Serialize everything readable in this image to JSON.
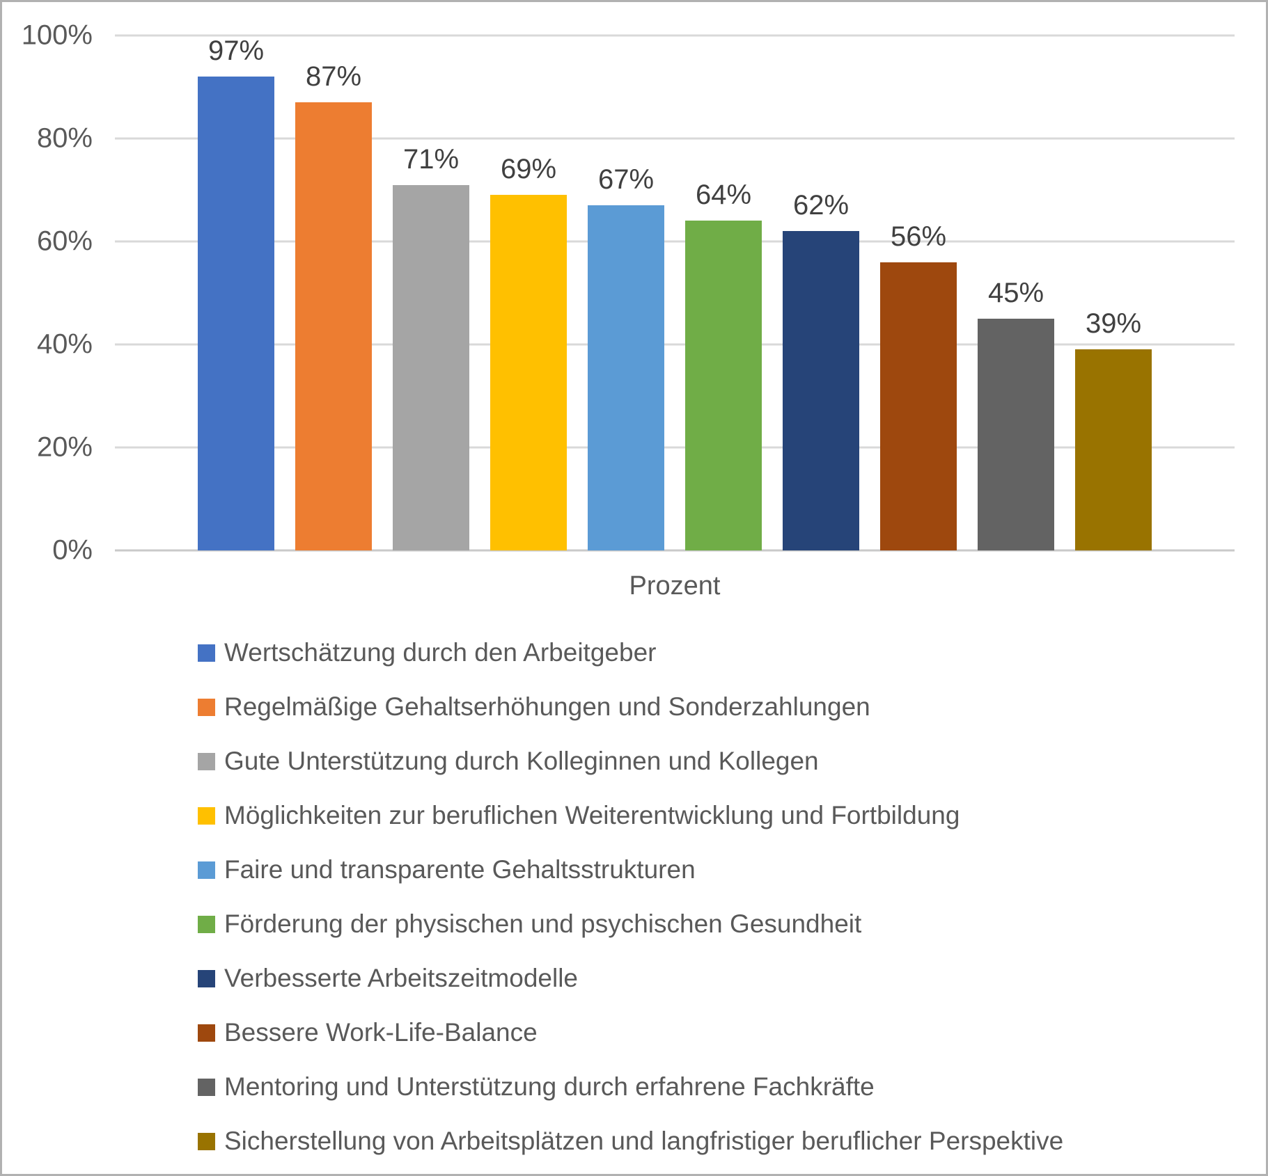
{
  "chart_data": {
    "type": "bar",
    "title": "",
    "xlabel": "Prozent",
    "ylabel": "",
    "ylim": [
      0,
      100
    ],
    "yticks": [
      {
        "label": "0%",
        "value": 0
      },
      {
        "label": "20%",
        "value": 20
      },
      {
        "label": "40%",
        "value": 40
      },
      {
        "label": "60%",
        "value": 60
      },
      {
        "label": "80%",
        "value": 80
      },
      {
        "label": "100%",
        "value": 100
      }
    ],
    "grid": true,
    "legend_position": "bottom",
    "categories": [
      "Prozent"
    ],
    "series": [
      {
        "name": "Wertschätzung durch den Arbeitgeber",
        "value": 97,
        "label": "97%",
        "color": "#4472C4"
      },
      {
        "name": "Regelmäßige Gehaltserhöhungen und Sonderzahlungen",
        "value": 87,
        "label": "87%",
        "color": "#ED7D31"
      },
      {
        "name": "Gute Unterstützung durch Kolleginnen und Kollegen",
        "value": 71,
        "label": "71%",
        "color": "#A5A5A5"
      },
      {
        "name": "Möglichkeiten zur beruflichen Weiterentwicklung und Fortbildung",
        "value": 69,
        "label": "69%",
        "color": "#FFC000"
      },
      {
        "name": "Faire und transparente Gehaltsstrukturen",
        "value": 67,
        "label": "67%",
        "color": "#5B9BD5"
      },
      {
        "name": "Förderung der physischen und psychischen Gesundheit",
        "value": 64,
        "label": "64%",
        "color": "#70AD47"
      },
      {
        "name": "Verbesserte Arbeitszeitmodelle",
        "value": 62,
        "label": "62%",
        "color": "#264478"
      },
      {
        "name": "Bessere Work-Life-Balance",
        "value": 56,
        "label": "56%",
        "color": "#9E480E"
      },
      {
        "name": "Mentoring und Unterstützung durch erfahrene Fachkräfte",
        "value": 45,
        "label": "45%",
        "color": "#636363"
      },
      {
        "name": "Sicherstellung von Arbeitsplätzen und langfristiger beruflicher Perspektive",
        "value": 39,
        "label": "39%",
        "color": "#997300"
      }
    ]
  },
  "style": {
    "gridline_color": "#d9d9d9",
    "axis_line_color": "#c9c9c9",
    "tick_text_color": "#595959",
    "data_label_color": "#404040",
    "legend_text_color": "#595959",
    "background": "#ffffff",
    "border_color": "#b1b1b1"
  }
}
